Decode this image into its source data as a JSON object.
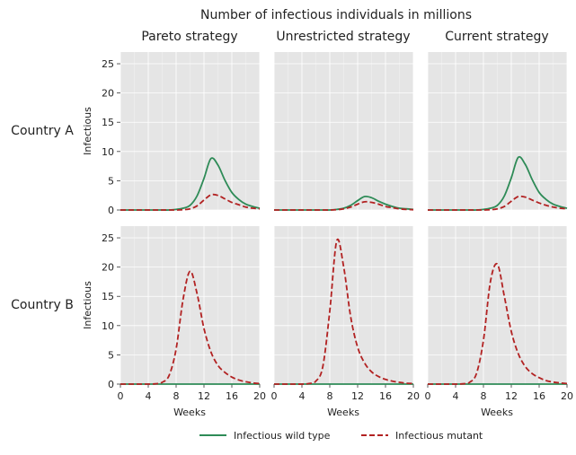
{
  "figure": {
    "title": "Number of infectious individuals in millions",
    "column_titles": [
      "Pareto strategy",
      "Unrestricted strategy",
      "Current strategy"
    ],
    "row_titles": [
      "Country A",
      "Country B"
    ],
    "ylabel": "Infectious",
    "xlabel": "Weeks",
    "legend": [
      "Infectious wild type",
      "Infectious mutant"
    ],
    "colors": {
      "wild": "#2e8b57",
      "mutant": "#b22222",
      "panel_bg": "#e5e5e5",
      "grid": "#ffffff"
    }
  },
  "chart_data": {
    "type": "line",
    "xlim": [
      0,
      20
    ],
    "ylim": [
      0,
      27
    ],
    "xticks": [
      0,
      4,
      8,
      12,
      16,
      20
    ],
    "yticks": [
      0,
      5,
      10,
      15,
      20,
      25
    ],
    "grid": true,
    "legend_position": "bottom-center",
    "x": [
      0,
      1,
      2,
      3,
      4,
      5,
      6,
      7,
      8,
      9,
      10,
      11,
      12,
      13,
      14,
      15,
      16,
      17,
      18,
      19,
      20
    ],
    "panels": [
      {
        "row": "Country A",
        "column": "Pareto strategy",
        "series": [
          {
            "name": "Infectious wild type",
            "values": [
              0,
              0,
              0,
              0,
              0,
              0,
              0,
              0,
              0.1,
              0.3,
              0.8,
              2.4,
              5.4,
              8.8,
              7.7,
              5.1,
              3.0,
              1.8,
              1.0,
              0.6,
              0.3
            ]
          },
          {
            "name": "Infectious mutant",
            "values": [
              0,
              0,
              0,
              0,
              0,
              0,
              0,
              0,
              0,
              0.05,
              0.2,
              0.7,
              1.7,
              2.6,
              2.5,
              1.9,
              1.3,
              0.9,
              0.5,
              0.3,
              0.2
            ]
          }
        ]
      },
      {
        "row": "Country A",
        "column": "Unrestricted strategy",
        "series": [
          {
            "name": "Infectious wild type",
            "values": [
              0,
              0,
              0,
              0,
              0,
              0,
              0,
              0,
              0,
              0.1,
              0.3,
              0.8,
              1.6,
              2.3,
              2.1,
              1.5,
              1.0,
              0.6,
              0.3,
              0.2,
              0.1
            ]
          },
          {
            "name": "Infectious mutant",
            "values": [
              0,
              0,
              0,
              0,
              0,
              0,
              0,
              0,
              0,
              0.05,
              0.2,
              0.5,
              1.0,
              1.4,
              1.3,
              1.0,
              0.6,
              0.4,
              0.2,
              0.1,
              0.05
            ]
          }
        ]
      },
      {
        "row": "Country A",
        "column": "Current strategy",
        "series": [
          {
            "name": "Infectious wild type",
            "values": [
              0,
              0,
              0,
              0,
              0,
              0,
              0,
              0,
              0.1,
              0.3,
              0.8,
              2.4,
              5.5,
              9.0,
              7.8,
              5.2,
              3.0,
              1.8,
              1.0,
              0.6,
              0.3
            ]
          },
          {
            "name": "Infectious mutant",
            "values": [
              0,
              0,
              0,
              0,
              0,
              0,
              0,
              0,
              0,
              0.05,
              0.2,
              0.6,
              1.5,
              2.3,
              2.2,
              1.7,
              1.2,
              0.8,
              0.5,
              0.3,
              0.2
            ]
          }
        ]
      },
      {
        "row": "Country B",
        "column": "Pareto strategy",
        "series": [
          {
            "name": "Infectious wild type",
            "values": [
              0,
              0,
              0,
              0,
              0,
              0,
              0,
              0,
              0,
              0,
              0,
              0,
              0,
              0,
              0,
              0,
              0,
              0,
              0,
              0,
              0
            ]
          },
          {
            "name": "Infectious mutant",
            "values": [
              0,
              0,
              0,
              0,
              0,
              0.05,
              0.3,
              1.5,
              6.0,
              14.5,
              19.3,
              15.5,
              9.5,
              5.5,
              3.2,
              2.0,
              1.2,
              0.7,
              0.4,
              0.2,
              0.1
            ]
          }
        ]
      },
      {
        "row": "Country B",
        "column": "Unrestricted strategy",
        "series": [
          {
            "name": "Infectious wild type",
            "values": [
              0,
              0,
              0,
              0,
              0,
              0,
              0,
              0,
              0,
              0,
              0,
              0,
              0,
              0,
              0,
              0,
              0,
              0,
              0,
              0,
              0
            ]
          },
          {
            "name": "Infectious mutant",
            "values": [
              0,
              0,
              0,
              0,
              0,
              0.1,
              0.5,
              3.0,
              12.5,
              24.5,
              20.0,
              11.5,
              6.3,
              3.6,
              2.1,
              1.3,
              0.8,
              0.5,
              0.3,
              0.15,
              0.1
            ]
          }
        ]
      },
      {
        "row": "Country B",
        "column": "Current strategy",
        "series": [
          {
            "name": "Infectious wild type",
            "values": [
              0,
              0,
              0,
              0,
              0,
              0,
              0,
              0,
              0,
              0,
              0,
              0,
              0,
              0,
              0,
              0,
              0,
              0,
              0,
              0,
              0
            ]
          },
          {
            "name": "Infectious mutant",
            "values": [
              0,
              0,
              0,
              0,
              0,
              0.05,
              0.3,
              1.8,
              7.5,
              17.5,
              20.5,
              15.0,
              9.0,
              5.2,
              3.0,
              1.8,
              1.1,
              0.6,
              0.35,
              0.2,
              0.1
            ]
          }
        ]
      }
    ]
  }
}
